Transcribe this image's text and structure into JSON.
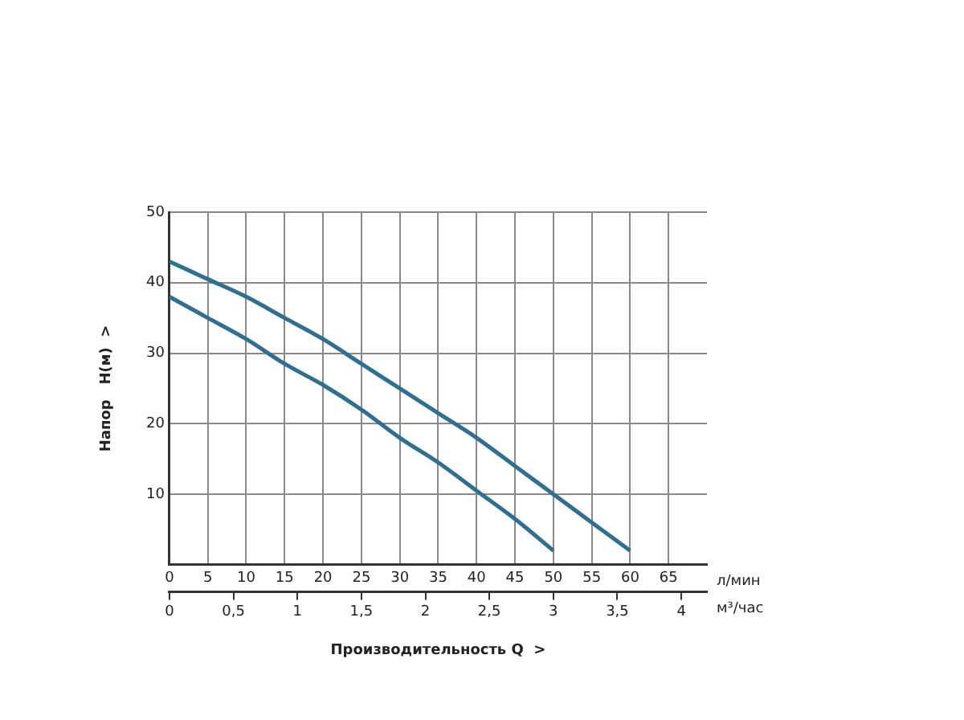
{
  "chart_data": {
    "type": "line",
    "ylabel": "Напор   H(м)  >",
    "xlabel": "л/мин",
    "x2label": "Производительность Q  >",
    "annotations": [
      "м³/час"
    ],
    "x": [
      0,
      5,
      10,
      15,
      20,
      25,
      30,
      35,
      40,
      45,
      50,
      55,
      60
    ],
    "series": [
      {
        "color": "#2e6f92",
        "values": [
          43,
          40.5,
          38,
          35,
          32,
          28.5,
          25,
          21.5,
          18,
          14,
          10,
          6,
          2
        ]
      },
      {
        "color": "#2e6f92",
        "values": [
          38,
          35,
          32,
          28.5,
          25.5,
          22,
          18,
          14.5,
          10.5,
          6.5,
          2,
          null,
          null
        ]
      }
    ],
    "xlim": [
      0,
      70
    ],
    "xticks": [
      0,
      5,
      10,
      15,
      20,
      25,
      30,
      35,
      40,
      45,
      50,
      55,
      60,
      65
    ],
    "ylim": [
      0,
      50
    ],
    "yticks": [
      {
        "value": 0,
        "label": null
      },
      10,
      20,
      30,
      40,
      50
    ],
    "x2lim": [
      0,
      4.2
    ],
    "x2ticks": [
      0,
      {
        "value": 0.5,
        "label": "0,5"
      },
      1,
      {
        "value": 1.5,
        "label": "1,5"
      },
      2,
      {
        "value": 2.5,
        "label": "2,5"
      },
      3,
      {
        "value": 3.5,
        "label": "3,5"
      },
      4
    ],
    "grid": true,
    "marker": "none"
  }
}
